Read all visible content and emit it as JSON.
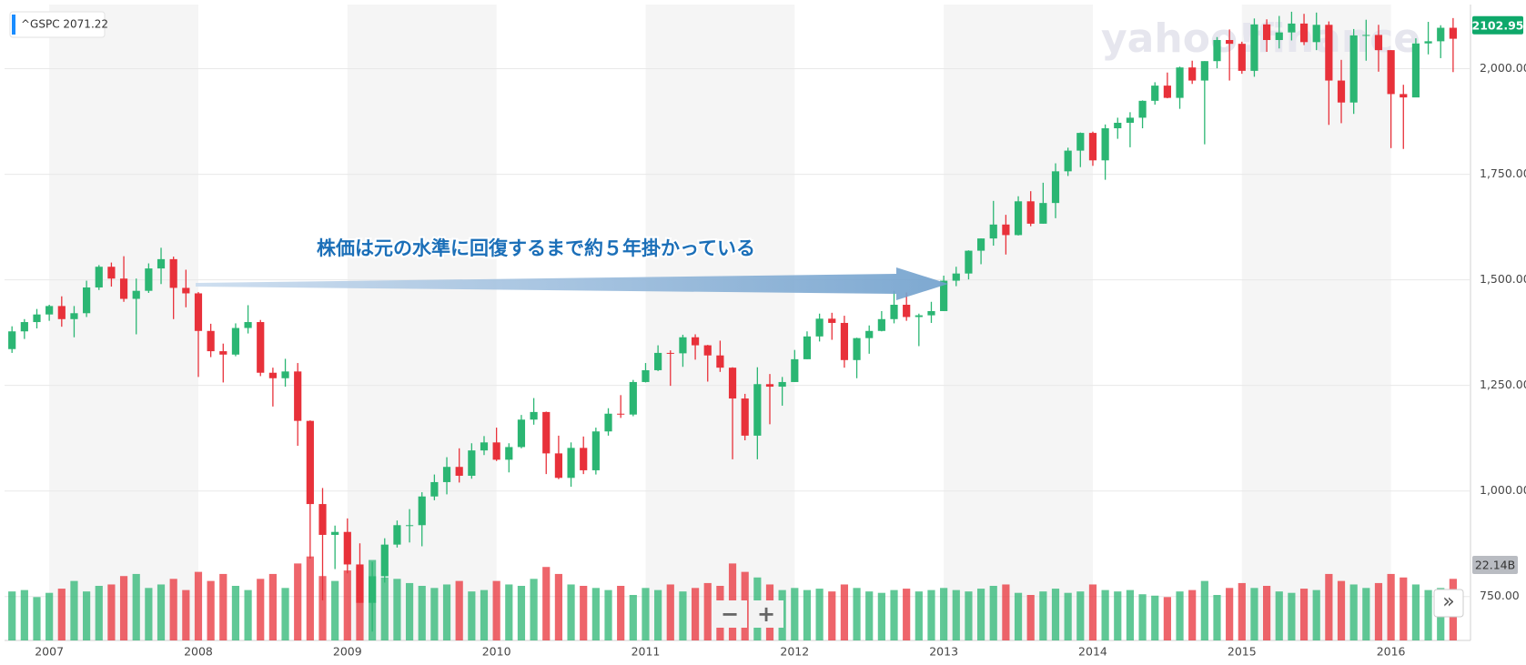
{
  "chart_data": {
    "type": "candlestick",
    "legend": "^GSPC 2071.22",
    "watermark": "yahoo!finance",
    "annotation": "株価は元の水準に回復するまで約５年掛かっている",
    "current_price": 2102.95,
    "volume_badge": "22.14B",
    "controls": {
      "zoom_out": "−",
      "zoom_in": "+",
      "expand": "»"
    },
    "up_color": "#2bb673",
    "down_color": "#e8313a",
    "grid": true,
    "ylim": [
      646,
      2152
    ],
    "yticks": [
      {
        "value": 750,
        "label": "750.00"
      },
      {
        "value": 1000,
        "label": "1,000.00"
      },
      {
        "value": 1250,
        "label": "1,250.00"
      },
      {
        "value": 1500,
        "label": "1,500.00"
      },
      {
        "value": 1750,
        "label": "1,750.00"
      },
      {
        "value": 2000,
        "label": "2,000.00"
      }
    ],
    "volume_ylim": [
      0,
      130
    ],
    "categories": [
      null,
      null,
      null,
      "2007",
      null,
      null,
      null,
      null,
      null,
      null,
      null,
      null,
      null,
      null,
      null,
      "2008",
      null,
      null,
      null,
      null,
      null,
      null,
      null,
      null,
      null,
      null,
      null,
      "2009",
      null,
      null,
      null,
      null,
      null,
      null,
      null,
      null,
      null,
      null,
      null,
      "2010",
      null,
      null,
      null,
      null,
      null,
      null,
      null,
      null,
      null,
      null,
      null,
      "2011",
      null,
      null,
      null,
      null,
      null,
      null,
      null,
      null,
      null,
      null,
      null,
      "2012",
      null,
      null,
      null,
      null,
      null,
      null,
      null,
      null,
      null,
      null,
      null,
      "2013",
      null,
      null,
      null,
      null,
      null,
      null,
      null,
      null,
      null,
      null,
      null,
      "2014",
      null,
      null,
      null,
      null,
      null,
      null,
      null,
      null,
      null,
      null,
      null,
      "2015",
      null,
      null,
      null,
      null,
      null,
      null,
      null,
      null,
      null,
      null,
      null,
      "2016",
      null,
      null,
      null,
      null,
      null
    ],
    "open": [
      1336,
      1378,
      1400,
      1418,
      1438,
      1407,
      1421,
      1482,
      1531,
      1503,
      1455,
      1474,
      1527,
      1549,
      1481,
      1468,
      1379,
      1331,
      1323,
      1386,
      1400,
      1280,
      1267,
      1283,
      1166,
      969,
      896,
      903,
      826,
      735,
      798,
      873,
      919,
      919,
      987,
      1021,
      1057,
      1036,
      1096,
      1115,
      1074,
      1104,
      1169,
      1187,
      1089,
      1031,
      1102,
      1049,
      1141,
      1183,
      1181,
      1258,
      1286,
      1327,
      1326,
      1364,
      1345,
      1321,
      1292,
      1219,
      1131,
      1253,
      1247,
      1258,
      1312,
      1366,
      1408,
      1398,
      1310,
      1362,
      1379,
      1407,
      1441,
      1412,
      1416,
      1426,
      1498,
      1515,
      1569,
      1598,
      1631,
      1606,
      1686,
      1633,
      1682,
      1757,
      1806,
      1848,
      1783,
      1859,
      1872,
      1884,
      1924,
      1960,
      1931,
      2003,
      1972,
      2018,
      2068,
      2059,
      1995,
      2105,
      2068,
      2086,
      2107,
      2063,
      2104,
      1972,
      1920,
      2079,
      2080,
      2044,
      1940,
      1932,
      2060,
      2065,
      2097
    ],
    "high": [
      1390,
      1407,
      1431,
      1441,
      1461,
      1438,
      1498,
      1535,
      1541,
      1556,
      1503,
      1539,
      1576,
      1555,
      1524,
      1471,
      1396,
      1349,
      1397,
      1440,
      1405,
      1292,
      1313,
      1303,
      1167,
      1007,
      918,
      935,
      876,
      832,
      888,
      930,
      957,
      997,
      1039,
      1080,
      1101,
      1113,
      1130,
      1150,
      1113,
      1180,
      1220,
      1188,
      1131,
      1115,
      1129,
      1150,
      1196,
      1227,
      1263,
      1303,
      1345,
      1333,
      1370,
      1371,
      1346,
      1356,
      1293,
      1230,
      1293,
      1277,
      1270,
      1334,
      1378,
      1420,
      1422,
      1415,
      1363,
      1392,
      1426,
      1474,
      1470,
      1420,
      1448,
      1510,
      1531,
      1570,
      1598,
      1687,
      1654,
      1698,
      1710,
      1730,
      1776,
      1813,
      1849,
      1851,
      1868,
      1884,
      1897,
      1925,
      1968,
      1991,
      2005,
      2019,
      2018,
      2075,
      2093,
      2064,
      2119,
      2117,
      2125,
      2135,
      2130,
      2133,
      2112,
      2021,
      2094,
      2116,
      2104,
      2044,
      1962,
      2072,
      2111,
      2103,
      2120
    ],
    "low": [
      1327,
      1360,
      1385,
      1403,
      1389,
      1364,
      1412,
      1476,
      1484,
      1448,
      1371,
      1469,
      1490,
      1407,
      1435,
      1270,
      1317,
      1257,
      1319,
      1373,
      1272,
      1200,
      1247,
      1107,
      840,
      741,
      815,
      805,
      735,
      667,
      783,
      866,
      878,
      869,
      978,
      992,
      1020,
      1029,
      1085,
      1071,
      1044,
      1101,
      1157,
      1040,
      1028,
      1010,
      1040,
      1039,
      1131,
      1173,
      1177,
      1257,
      1284,
      1249,
      1294,
      1311,
      1259,
      1282,
      1075,
      1120,
      1075,
      1158,
      1202,
      1258,
      1312,
      1354,
      1358,
      1292,
      1267,
      1325,
      1378,
      1397,
      1403,
      1343,
      1398,
      1426,
      1485,
      1501,
      1537,
      1581,
      1560,
      1605,
      1627,
      1633,
      1646,
      1746,
      1767,
      1770,
      1737,
      1834,
      1814,
      1859,
      1915,
      1930,
      1905,
      1964,
      1821,
      2001,
      1972,
      1988,
      1981,
      2040,
      2048,
      2067,
      2056,
      2044,
      1867,
      1871,
      1893,
      2019,
      1993,
      1812,
      1810,
      1937,
      2034,
      2025,
      1992
    ],
    "close": [
      1378,
      1400,
      1418,
      1438,
      1407,
      1421,
      1482,
      1531,
      1503,
      1455,
      1474,
      1527,
      1549,
      1481,
      1468,
      1379,
      1331,
      1323,
      1386,
      1400,
      1280,
      1267,
      1283,
      1166,
      969,
      896,
      903,
      826,
      735,
      798,
      873,
      919,
      919,
      987,
      1021,
      1057,
      1036,
      1096,
      1115,
      1074,
      1104,
      1169,
      1187,
      1089,
      1031,
      1102,
      1049,
      1141,
      1183,
      1181,
      1258,
      1286,
      1327,
      1326,
      1364,
      1345,
      1321,
      1292,
      1219,
      1131,
      1253,
      1247,
      1258,
      1312,
      1366,
      1408,
      1398,
      1310,
      1362,
      1379,
      1407,
      1441,
      1412,
      1416,
      1426,
      1498,
      1515,
      1569,
      1598,
      1631,
      1606,
      1686,
      1633,
      1682,
      1757,
      1806,
      1848,
      1783,
      1859,
      1872,
      1884,
      1924,
      1960,
      1931,
      2003,
      1972,
      2018,
      2068,
      2059,
      1995,
      2105,
      2068,
      2086,
      2107,
      2063,
      2104,
      1972,
      1920,
      2079,
      2080,
      2044,
      1940,
      1932,
      2060,
      2065,
      2097,
      2071
    ],
    "volume": [
      70,
      72,
      62,
      68,
      74,
      85,
      70,
      78,
      80,
      92,
      95,
      75,
      80,
      88,
      72,
      98,
      85,
      95,
      78,
      72,
      88,
      95,
      75,
      110,
      120,
      92,
      85,
      100,
      105,
      115,
      90,
      88,
      82,
      78,
      75,
      80,
      85,
      70,
      72,
      85,
      80,
      78,
      88,
      105,
      95,
      80,
      78,
      75,
      72,
      78,
      65,
      75,
      72,
      80,
      70,
      75,
      82,
      78,
      110,
      98,
      90,
      80,
      72,
      75,
      72,
      74,
      70,
      80,
      75,
      70,
      68,
      72,
      74,
      70,
      72,
      75,
      72,
      70,
      74,
      78,
      80,
      68,
      65,
      70,
      74,
      68,
      70,
      80,
      72,
      70,
      72,
      66,
      64,
      62,
      70,
      72,
      85,
      65,
      75,
      82,
      75,
      78,
      70,
      68,
      74,
      72,
      95,
      85,
      80,
      75,
      82,
      95,
      90,
      80,
      72,
      75,
      88
    ]
  }
}
